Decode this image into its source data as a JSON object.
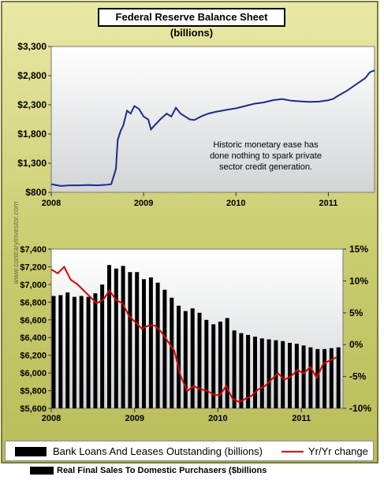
{
  "chart_data": [
    {
      "type": "line",
      "title": "Federal Reserve Balance Sheet (billions)",
      "ylim": [
        800,
        3300
      ],
      "yticks": [
        "$800",
        "$1,300",
        "$1,800",
        "$2,300",
        "$2,800",
        "$3,300"
      ],
      "ytick_values": [
        800,
        1300,
        1800,
        2300,
        2800,
        3300
      ],
      "xticks": [
        "2008",
        "2009",
        "2010",
        "2011"
      ],
      "xlim": [
        2008.0,
        2011.5
      ],
      "grid": false,
      "line_color": "#1a2c8a",
      "annotation": "Historic monetary ease has done nothing to spark private sector credit generation.",
      "x": [
        2008.0,
        2008.1,
        2008.2,
        2008.3,
        2008.4,
        2008.5,
        2008.6,
        2008.65,
        2008.7,
        2008.72,
        2008.75,
        2008.78,
        2008.82,
        2008.86,
        2008.9,
        2008.95,
        2009.0,
        2009.05,
        2009.08,
        2009.12,
        2009.18,
        2009.25,
        2009.3,
        2009.35,
        2009.4,
        2009.45,
        2009.5,
        2009.55,
        2009.62,
        2009.7,
        2009.78,
        2009.85,
        2009.92,
        2010.0,
        2010.1,
        2010.2,
        2010.3,
        2010.4,
        2010.5,
        2010.6,
        2010.7,
        2010.8,
        2010.9,
        2011.0,
        2011.05,
        2011.1,
        2011.2,
        2011.3,
        2011.4,
        2011.45,
        2011.5
      ],
      "y": [
        940,
        910,
        920,
        920,
        925,
        920,
        930,
        940,
        1200,
        1700,
        1850,
        1950,
        2200,
        2150,
        2280,
        2230,
        2100,
        2050,
        1880,
        1950,
        2050,
        2150,
        2100,
        2250,
        2150,
        2100,
        2050,
        2040,
        2100,
        2150,
        2180,
        2200,
        2220,
        2240,
        2280,
        2320,
        2340,
        2380,
        2400,
        2370,
        2360,
        2350,
        2355,
        2380,
        2400,
        2450,
        2540,
        2650,
        2760,
        2860,
        2890
      ]
    },
    {
      "type": "bar",
      "ylim": [
        5600,
        7400
      ],
      "yticks": [
        "$5,600",
        "$5,800",
        "$6,000",
        "$6,200",
        "$6,400",
        "$6,600",
        "$6,800",
        "$7,000",
        "$7,200",
        "$7,400"
      ],
      "ytick_values": [
        5600,
        5800,
        6000,
        6200,
        6400,
        6600,
        6800,
        7000,
        7200,
        7400
      ],
      "y2lim": [
        -10,
        15
      ],
      "y2ticks": [
        "-10%",
        "-5%",
        "0%",
        "5%",
        "10%",
        "15%"
      ],
      "y2tick_values": [
        -10,
        -5,
        0,
        5,
        10,
        15
      ],
      "xticks": [
        "2008",
        "2009",
        "2010",
        "2011"
      ],
      "xlim": [
        2008.0,
        2011.5
      ],
      "bar_color": "#000000",
      "line_color": "#e00000",
      "bar_x": [
        2008.0,
        2008.083,
        2008.167,
        2008.25,
        2008.333,
        2008.417,
        2008.5,
        2008.583,
        2008.667,
        2008.75,
        2008.833,
        2008.917,
        2009.0,
        2009.083,
        2009.167,
        2009.25,
        2009.333,
        2009.417,
        2009.5,
        2009.583,
        2009.667,
        2009.75,
        2009.833,
        2009.917,
        2010.0,
        2010.083,
        2010.167,
        2010.25,
        2010.333,
        2010.417,
        2010.5,
        2010.583,
        2010.667,
        2010.75,
        2010.833,
        2010.917,
        2011.0,
        2011.083,
        2011.167,
        2011.25,
        2011.333,
        2011.417
      ],
      "series": [
        {
          "name": "Bank Loans And Leases Outstanding (billions)",
          "values": [
            6870,
            6880,
            6910,
            6860,
            6870,
            6860,
            6900,
            7000,
            7220,
            7180,
            7210,
            7140,
            7140,
            7060,
            7080,
            7020,
            6940,
            6850,
            6760,
            6700,
            6730,
            6680,
            6600,
            6550,
            6580,
            6620,
            6480,
            6450,
            6430,
            6410,
            6390,
            6380,
            6370,
            6360,
            6340,
            6330,
            6310,
            6290,
            6270,
            6270,
            6280,
            6290
          ]
        },
        {
          "name": "Yr/Yr change",
          "values": [
            11.8,
            11.2,
            12.2,
            10.2,
            9.5,
            8.5,
            7.5,
            6.5,
            7.0,
            8.5,
            7.0,
            6.5,
            4.5,
            3.5,
            2.5,
            3.0,
            3.0,
            2.0,
            0.5,
            -1.0,
            -5.0,
            -7.3,
            -6.5,
            -7.0,
            -7.2,
            -7.8,
            -8.0,
            -6.5,
            -8.5,
            -9.0,
            -8.5,
            -8.0,
            -7.0,
            -6.5,
            -5.5,
            -4.5,
            -5.5,
            -5.0,
            -4.0,
            -4.5,
            -3.5,
            -5.2,
            -3.0,
            -2.5,
            -2.0
          ]
        }
      ],
      "line_x_step": 0.0777
    }
  ],
  "legend": {
    "bank_loans": "Bank Loans And Leases Outstanding (billions)",
    "yoy": "Yr/Yr change",
    "real_sales": "Real Final Sales To Domestic Purchasers ($billions"
  },
  "watermark": "www.contraryinvestor.com"
}
